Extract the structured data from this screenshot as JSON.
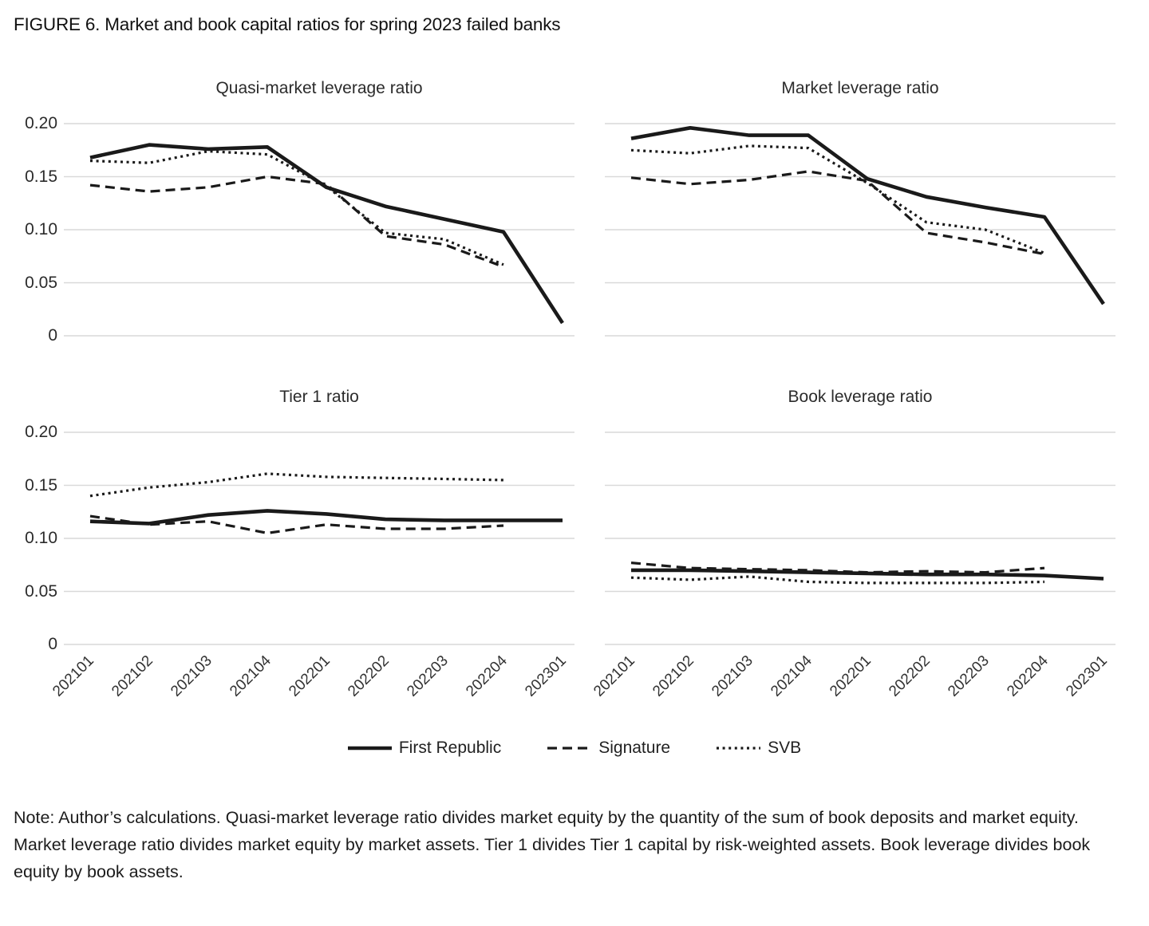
{
  "figure_title": "FIGURE 6. Market and book capital ratios for spring 2023 failed banks",
  "note": "Note: Author’s calculations. Quasi-market leverage ratio divides market equity by the quantity of the sum of book deposits and market equity. Market leverage ratio divides market equity by market assets. Tier 1 divides Tier 1 capital by risk-weighted assets. Book leverage divides book equity by book assets.",
  "colors": {
    "line": "#1a1a1a",
    "grid": "#d9d9d9",
    "background": "#ffffff"
  },
  "x_labels": [
    "202101",
    "202102",
    "202103",
    "202104",
    "202201",
    "202202",
    "202203",
    "202204",
    "202301"
  ],
  "y_tick_labels": [
    "0.20",
    "0.15",
    "0.10",
    "0.05",
    "0"
  ],
  "y_tick_values": [
    0.2,
    0.15,
    0.1,
    0.05,
    0
  ],
  "legend": [
    {
      "name": "First Republic",
      "style": "solid"
    },
    {
      "name": "Signature",
      "style": "dashed"
    },
    {
      "name": "SVB",
      "style": "dotted"
    }
  ],
  "chart_data": [
    {
      "type": "line",
      "title": "Quasi-market leverage ratio",
      "x": [
        "202101",
        "202102",
        "202103",
        "202104",
        "202201",
        "202202",
        "202203",
        "202204",
        "202301"
      ],
      "ylim": [
        0,
        0.21
      ],
      "grid": true,
      "legend_position": "bottom",
      "series": [
        {
          "name": "First Republic",
          "style": "solid",
          "values": [
            0.168,
            0.18,
            0.176,
            0.178,
            0.14,
            0.122,
            0.11,
            0.098,
            0.012
          ]
        },
        {
          "name": "Signature",
          "style": "dashed",
          "values": [
            0.142,
            0.136,
            0.14,
            0.15,
            0.143,
            0.094,
            0.086,
            0.065
          ]
        },
        {
          "name": "SVB",
          "style": "dotted",
          "values": [
            0.165,
            0.163,
            0.174,
            0.171,
            0.141,
            0.097,
            0.091,
            0.067
          ]
        }
      ]
    },
    {
      "type": "line",
      "title": "Market leverage ratio",
      "x": [
        "202101",
        "202102",
        "202103",
        "202104",
        "202201",
        "202202",
        "202203",
        "202204",
        "202301"
      ],
      "ylim": [
        0,
        0.21
      ],
      "grid": true,
      "legend_position": "bottom",
      "series": [
        {
          "name": "First Republic",
          "style": "solid",
          "values": [
            0.186,
            0.196,
            0.189,
            0.189,
            0.148,
            0.131,
            0.121,
            0.112,
            0.03
          ]
        },
        {
          "name": "Signature",
          "style": "dashed",
          "values": [
            0.149,
            0.143,
            0.147,
            0.155,
            0.146,
            0.097,
            0.088,
            0.077
          ]
        },
        {
          "name": "SVB",
          "style": "dotted",
          "values": [
            0.175,
            0.172,
            0.179,
            0.177,
            0.144,
            0.107,
            0.1,
            0.078
          ]
        }
      ]
    },
    {
      "type": "line",
      "title": "Tier 1 ratio",
      "x": [
        "202101",
        "202102",
        "202103",
        "202104",
        "202201",
        "202202",
        "202203",
        "202204",
        "202301"
      ],
      "ylim": [
        0,
        0.21
      ],
      "grid": true,
      "legend_position": "bottom",
      "series": [
        {
          "name": "First Republic",
          "style": "solid",
          "values": [
            0.116,
            0.114,
            0.122,
            0.126,
            0.123,
            0.118,
            0.117,
            0.117,
            0.117
          ]
        },
        {
          "name": "Signature",
          "style": "dashed",
          "values": [
            0.121,
            0.113,
            0.116,
            0.105,
            0.113,
            0.109,
            0.109,
            0.112
          ]
        },
        {
          "name": "SVB",
          "style": "dotted",
          "values": [
            0.14,
            0.148,
            0.153,
            0.161,
            0.158,
            0.157,
            0.156,
            0.155
          ]
        }
      ]
    },
    {
      "type": "line",
      "title": "Book leverage ratio",
      "x": [
        "202101",
        "202102",
        "202103",
        "202104",
        "202201",
        "202202",
        "202203",
        "202204",
        "202301"
      ],
      "ylim": [
        0,
        0.21
      ],
      "grid": true,
      "legend_position": "bottom",
      "series": [
        {
          "name": "First Republic",
          "style": "solid",
          "values": [
            0.07,
            0.07,
            0.069,
            0.068,
            0.067,
            0.066,
            0.066,
            0.065,
            0.062
          ]
        },
        {
          "name": "Signature",
          "style": "dashed",
          "values": [
            0.077,
            0.072,
            0.071,
            0.07,
            0.068,
            0.069,
            0.068,
            0.072
          ]
        },
        {
          "name": "SVB",
          "style": "dotted",
          "values": [
            0.063,
            0.061,
            0.064,
            0.059,
            0.058,
            0.058,
            0.058,
            0.059
          ]
        }
      ]
    }
  ]
}
